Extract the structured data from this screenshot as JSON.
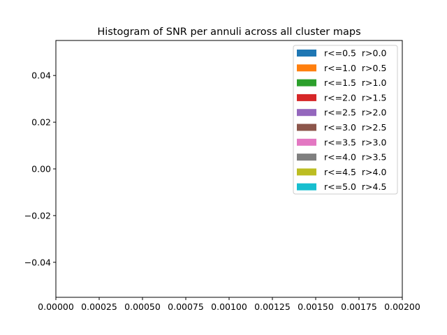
{
  "chart_data": {
    "type": "bar",
    "title": "Histogram of SNR per annuli across all cluster maps",
    "xlabel": "",
    "ylabel": "",
    "xlim": [
      0.0,
      0.002
    ],
    "ylim": [
      -0.055,
      0.055
    ],
    "x_ticks": [
      "0.00000",
      "0.00025",
      "0.00050",
      "0.00075",
      "0.00100",
      "0.00125",
      "0.00150",
      "0.00175",
      "0.00200"
    ],
    "y_ticks": [
      "0.04",
      "0.02",
      "0.00",
      "−0.02",
      "−0.04"
    ],
    "x_tick_values": [
      0,
      0.00025,
      0.0005,
      0.00075,
      0.001,
      0.00125,
      0.0015,
      0.00175,
      0.002
    ],
    "y_tick_values": [
      0.04,
      0.02,
      0.0,
      -0.02,
      -0.04
    ],
    "grid": false,
    "legend_position": "top-right",
    "series": [
      {
        "name": "r<=0.5  r>0.0",
        "color": "#1f77b4",
        "values": []
      },
      {
        "name": "r<=1.0  r>0.5",
        "color": "#ff7f0e",
        "values": []
      },
      {
        "name": "r<=1.5  r>1.0",
        "color": "#2ca02c",
        "values": []
      },
      {
        "name": "r<=2.0  r>1.5",
        "color": "#d62728",
        "values": []
      },
      {
        "name": "r<=2.5  r>2.0",
        "color": "#9467bd",
        "values": []
      },
      {
        "name": "r<=3.0  r>2.5",
        "color": "#8c564b",
        "values": []
      },
      {
        "name": "r<=3.5  r>3.0",
        "color": "#e377c2",
        "values": []
      },
      {
        "name": "r<=4.0  r>3.5",
        "color": "#7f7f7f",
        "values": []
      },
      {
        "name": "r<=4.5  r>4.0",
        "color": "#bcbd22",
        "values": []
      },
      {
        "name": "r<=5.0  r>4.5",
        "color": "#17becf",
        "values": []
      }
    ]
  }
}
